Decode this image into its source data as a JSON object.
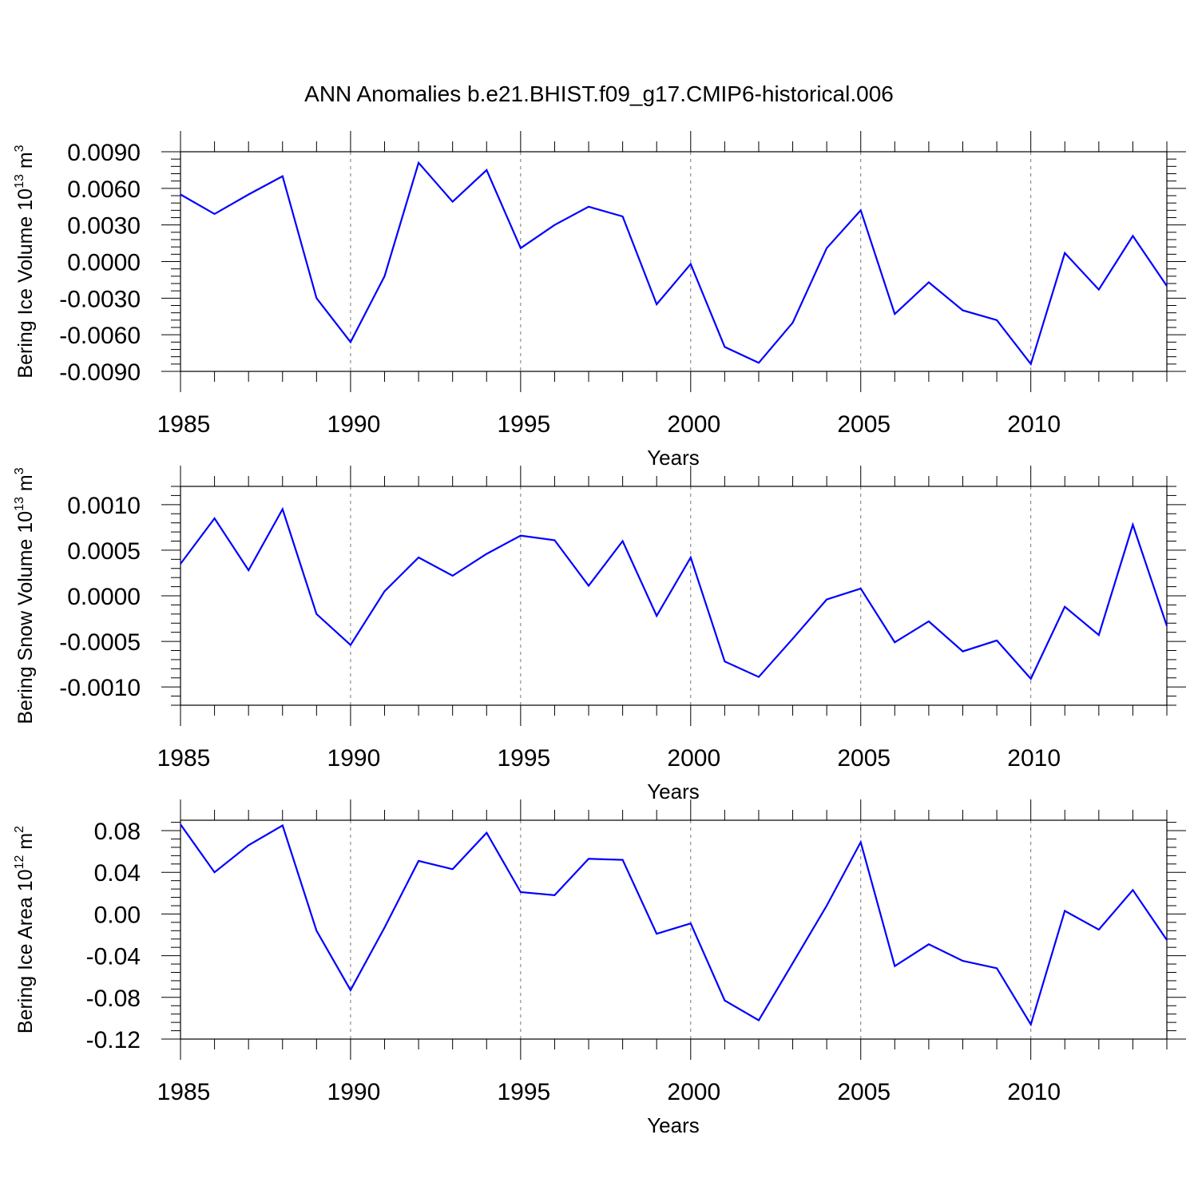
{
  "title": "ANN Anomalies b.e21.BHIST.f09_g17.CMIP6-historical.006",
  "chart_data": [
    {
      "type": "line",
      "ylabel": {
        "text": "Bering Ice Volume 10",
        "exp": "13",
        "unit": " m",
        "unit_exp": "3"
      },
      "xlabel": "Years",
      "xlim": [
        1985,
        2014
      ],
      "ylim": [
        -0.009,
        0.012
      ],
      "x_ticks": [
        1985,
        1990,
        1995,
        2000,
        2005,
        2010
      ],
      "y_ticks": [
        -0.009,
        -0.006,
        -0.003,
        0.0,
        0.003,
        0.006,
        0.009
      ],
      "y_tick_labels": [
        "-0.0090",
        "-0.0060",
        "-0.0030",
        "0.0000",
        "0.0030",
        "0.0060",
        "0.0090"
      ],
      "grid": "x dashed at major ticks",
      "color": "#0000ff",
      "x": [
        1985,
        1986,
        1987,
        1988,
        1989,
        1990,
        1991,
        1992,
        1993,
        1994,
        1995,
        1996,
        1997,
        1998,
        1999,
        2000,
        2001,
        2002,
        2003,
        2004,
        2005,
        2006,
        2007,
        2008,
        2009,
        2010,
        2011,
        2012,
        2013,
        2014
      ],
      "values": [
        0.0055,
        0.0039,
        0.0055,
        0.007,
        -0.003,
        -0.0066,
        -0.0012,
        0.0081,
        0.0049,
        0.0075,
        0.0011,
        0.003,
        0.0045,
        0.0037,
        -0.0035,
        -0.0002,
        -0.007,
        -0.0083,
        -0.005,
        0.0011,
        0.0042,
        -0.0043,
        -0.0017,
        -0.004,
        -0.0048,
        -0.0084,
        0.0007,
        -0.0023,
        0.0021,
        -0.002
      ]
    },
    {
      "type": "line",
      "ylabel": {
        "text": "Bering Snow Volume 10",
        "exp": "13",
        "unit": " m",
        "unit_exp": "3"
      },
      "xlabel": "Years",
      "xlim": [
        1985,
        2014
      ],
      "ylim": [
        -0.0012,
        0.0012
      ],
      "x_ticks": [
        1985,
        1990,
        1995,
        2000,
        2005,
        2010
      ],
      "y_ticks": [
        -0.001,
        -0.0005,
        0.0,
        0.0005,
        0.001
      ],
      "y_tick_labels": [
        "-0.0010",
        "-0.0005",
        "0.0000",
        "0.0005",
        "0.0010"
      ],
      "grid": "x dashed at major ticks",
      "color": "#0000ff",
      "x": [
        1985,
        1986,
        1987,
        1988,
        1989,
        1990,
        1991,
        1992,
        1993,
        1994,
        1995,
        1996,
        1997,
        1998,
        1999,
        2000,
        2001,
        2002,
        2003,
        2004,
        2005,
        2006,
        2007,
        2008,
        2009,
        2010,
        2011,
        2012,
        2013,
        2014
      ],
      "values": [
        0.00035,
        0.00085,
        0.00028,
        0.00095,
        -0.0002,
        -0.00054,
        5e-05,
        0.00042,
        0.00022,
        0.00046,
        0.00066,
        0.00061,
        0.00011,
        0.0006,
        -0.00022,
        0.00042,
        -0.00072,
        -0.00089,
        -0.00047,
        -4e-05,
        8e-05,
        -0.00051,
        -0.00028,
        -0.00061,
        -0.00049,
        -0.00091,
        -0.00012,
        -0.00043,
        0.00078,
        -0.00033
      ]
    },
    {
      "type": "line",
      "ylabel": {
        "text": "Bering Ice Area 10",
        "exp": "12",
        "unit": " m",
        "unit_exp": "2"
      },
      "xlabel": "Years",
      "xlim": [
        1985,
        2014
      ],
      "ylim": [
        -0.12,
        0.09
      ],
      "x_ticks": [
        1985,
        1990,
        1995,
        2000,
        2005,
        2010
      ],
      "y_ticks": [
        -0.12,
        -0.08,
        -0.04,
        0.0,
        0.04,
        0.08
      ],
      "y_tick_labels": [
        "-0.12",
        "-0.08",
        "-0.04",
        "0.00",
        "0.04",
        "0.08"
      ],
      "grid": "x dashed at major ticks",
      "color": "#0000ff",
      "x": [
        1985,
        1986,
        1987,
        1988,
        1989,
        1990,
        1991,
        1992,
        1993,
        1994,
        1995,
        1996,
        1997,
        1998,
        1999,
        2000,
        2001,
        2002,
        2003,
        2004,
        2005,
        2006,
        2007,
        2008,
        2009,
        2010,
        2011,
        2012,
        2013,
        2014
      ],
      "values": [
        0.086,
        0.04,
        0.066,
        0.085,
        -0.016,
        -0.073,
        -0.013,
        0.051,
        0.043,
        0.078,
        0.021,
        0.018,
        0.053,
        0.052,
        -0.019,
        -0.009,
        -0.083,
        -0.102,
        -0.047,
        0.008,
        0.069,
        -0.05,
        -0.029,
        -0.045,
        -0.052,
        -0.106,
        0.003,
        -0.015,
        0.023,
        -0.025
      ]
    }
  ]
}
